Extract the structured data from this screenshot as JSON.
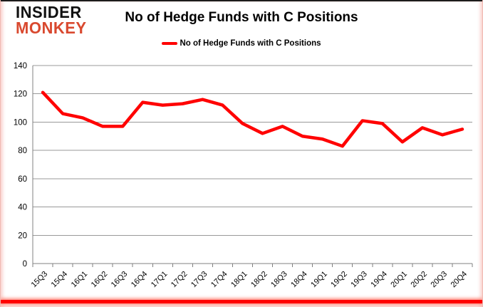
{
  "header": {
    "logo_line1": "INSIDER",
    "logo_line2": "MONKEY",
    "title": "No of Hedge Funds with C Positions",
    "legend_label": "No of Hedge Funds with C Positions"
  },
  "colors": {
    "line": "#ff0000",
    "gridline": "#999999",
    "axis": "#808080",
    "tick_text": "#000000",
    "logo_black": "#111111",
    "logo_accent": "#d9492f",
    "bottom_bar": "#ff0000",
    "frame_border": "#f0b9b2"
  },
  "chart_data": {
    "type": "line",
    "title": "No of Hedge Funds with C Positions",
    "xlabel": "",
    "ylabel": "",
    "ylim": [
      0,
      140
    ],
    "ytick_step": 20,
    "grid": true,
    "legend_position": "top",
    "categories": [
      "15Q3",
      "15Q4",
      "16Q1",
      "16Q2",
      "16Q3",
      "16Q4",
      "17Q1",
      "17Q2",
      "17Q3",
      "17Q4",
      "18Q1",
      "18Q2",
      "18Q3",
      "18Q4",
      "19Q1",
      "19Q2",
      "19Q3",
      "19Q4",
      "20Q1",
      "20Q2",
      "20Q3",
      "20Q4"
    ],
    "series": [
      {
        "name": "No of Hedge Funds with C Positions",
        "values": [
          121,
          106,
          103,
          97,
          97,
          114,
          112,
          113,
          116,
          112,
          99,
          92,
          97,
          90,
          88,
          83,
          101,
          99,
          86,
          96,
          91,
          95
        ]
      }
    ]
  }
}
